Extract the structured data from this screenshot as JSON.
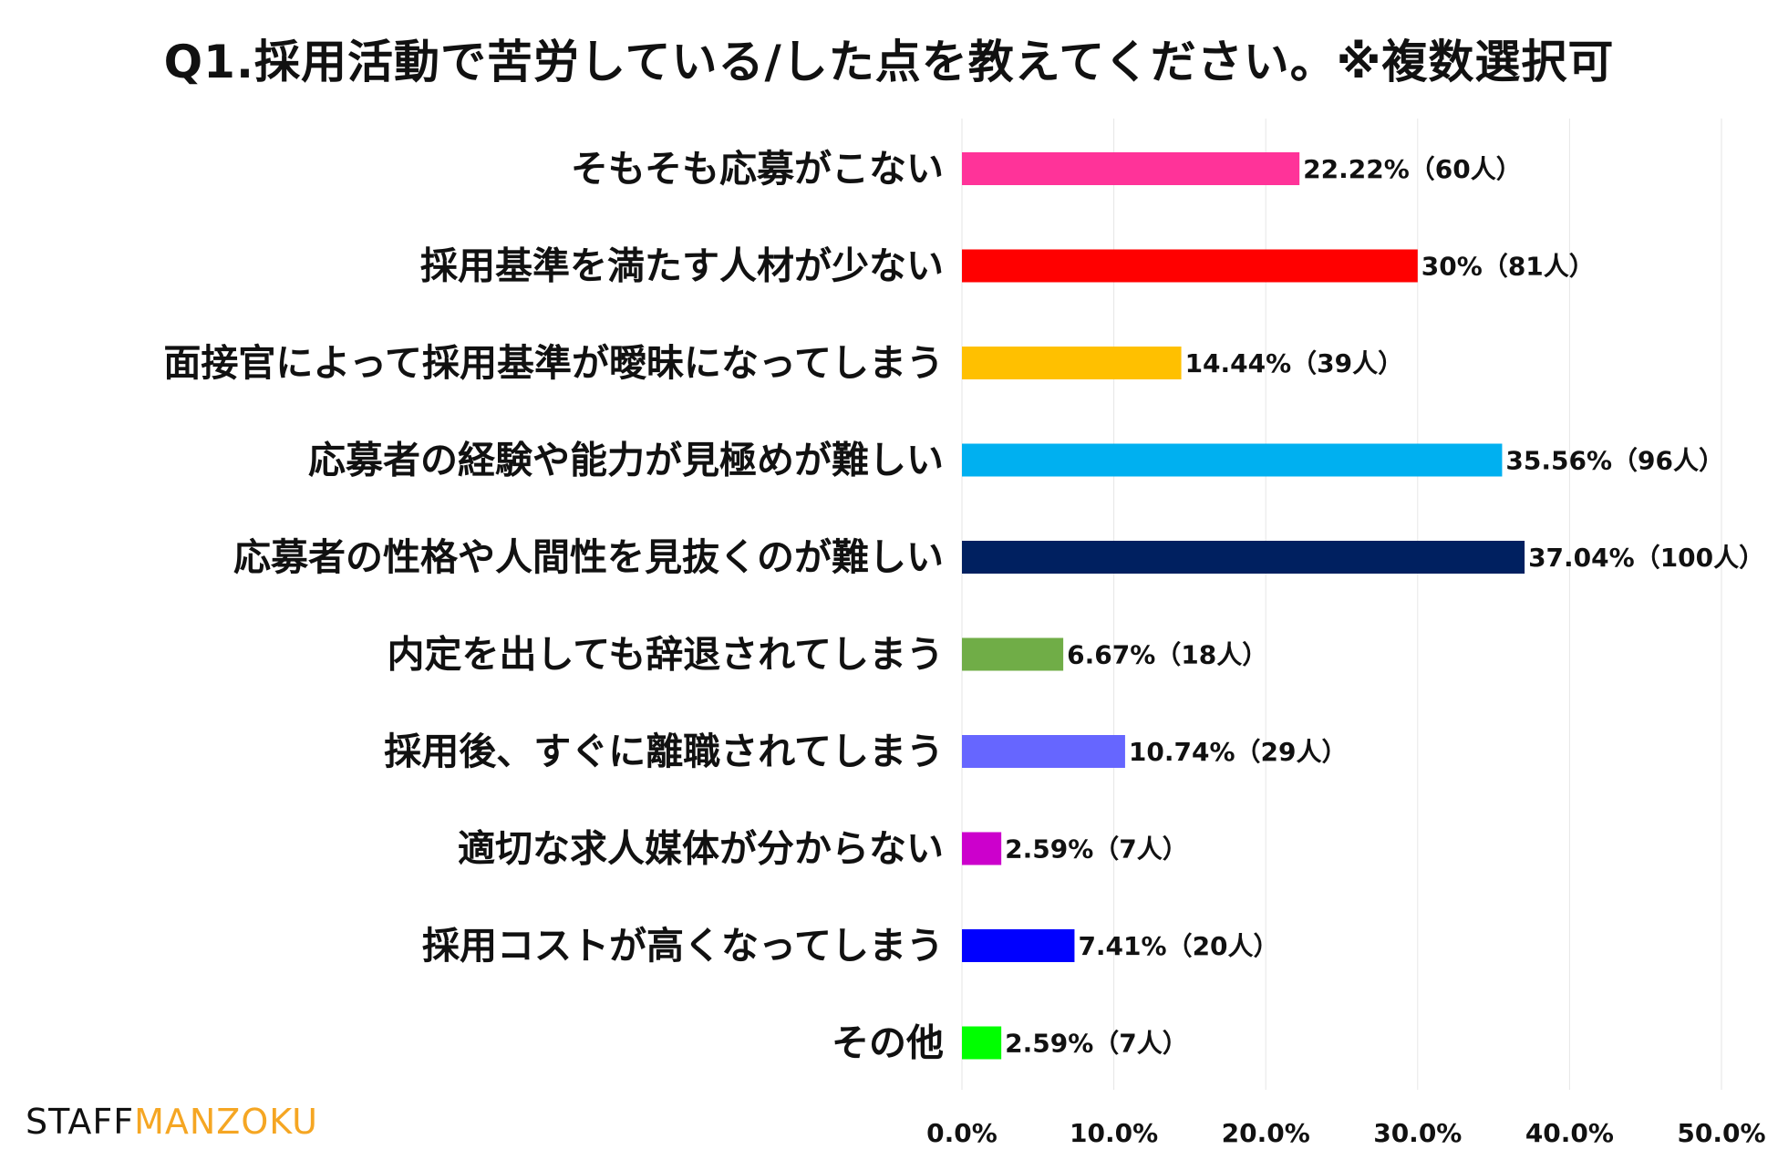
{
  "chart_data": {
    "type": "bar",
    "orientation": "horizontal",
    "title": "Q1.採用活動で苦労している/した点を教えてください。※複数選択可",
    "categories": [
      "そもそも応募がこない",
      "採用基準を満たす人材が少ない",
      "面接官によって採用基準が曖昧になってしまう",
      "応募者の経験や能力が見極めが難しい",
      "応募者の性格や人間性を見抜くのが難しい",
      "内定を出しても辞退されてしまう",
      "採用後、すぐに離職されてしまう",
      "適切な求人媒体が分からない",
      "採用コストが高くなってしまう",
      "その他"
    ],
    "values": [
      22.22,
      30,
      14.44,
      35.56,
      37.04,
      6.67,
      10.74,
      2.59,
      7.41,
      2.59
    ],
    "data_labels": [
      "22.22%（60人）",
      "30%（81人）",
      "14.44%（39人）",
      "35.56%（96人）",
      "37.04%（100人）",
      "6.67%（18人）",
      "10.74%（29人）",
      "2.59%（7人）",
      "7.41%（20人）",
      "2.59%（7人）"
    ],
    "colors": [
      "#ff3399",
      "#ff0000",
      "#ffc000",
      "#00b0f0",
      "#002060",
      "#70ad47",
      "#6666ff",
      "#cc00cc",
      "#0000ff",
      "#00ff00"
    ],
    "xlim": [
      0,
      50
    ],
    "x_ticks": [
      0,
      10,
      20,
      30,
      40,
      50
    ],
    "x_tick_labels": [
      "0.0%",
      "10.0%",
      "20.0%",
      "30.0%",
      "40.0%",
      "50.0%"
    ],
    "grid": "vertical",
    "legend": "none"
  },
  "logo": {
    "part1": "STAFF",
    "part2": "MANZOKU",
    "color1": "#111111",
    "color2": "#f5a623"
  }
}
